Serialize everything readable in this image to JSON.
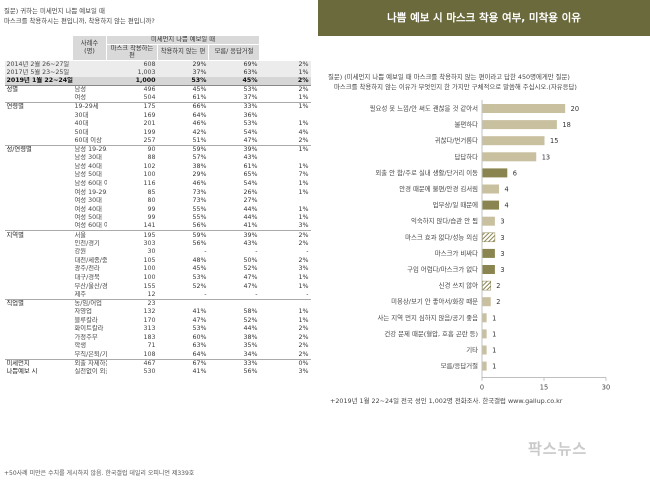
{
  "table": {
    "question1": "질문) 귀하는 미세먼지 나쁨 예보일 때",
    "question2": "마스크를 착용하시는 편입니까, 착용하지 않는 편입니까?",
    "header": {
      "base_label": "사례수 (명)",
      "super_label": "미세먼지 나쁨 예보일 때",
      "col_wear": "마스크 착용하는 편",
      "col_notwear": "착용하지 않는 편",
      "col_dk": "모름/ 응답거절"
    },
    "rows": [
      {
        "g": "",
        "s": "2014년 2월 26~27일",
        "n": "608",
        "a": "29%",
        "b": "69%",
        "c": "2%",
        "type": "trend"
      },
      {
        "g": "",
        "s": "2017년 5월 23~25일",
        "n": "1,003",
        "a": "37%",
        "b": "63%",
        "c": "1%",
        "type": "trend"
      },
      {
        "g": "",
        "s": "2019년 1월 22~24일",
        "n": "1,000",
        "a": "53%",
        "b": "45%",
        "c": "2%",
        "type": "current"
      },
      {
        "g": "성별",
        "s": "남성",
        "n": "496",
        "a": "45%",
        "b": "53%",
        "c": "2%"
      },
      {
        "g": "",
        "s": "여성",
        "n": "504",
        "a": "61%",
        "b": "37%",
        "c": "1%"
      },
      {
        "g": "연령별",
        "s": "19-29세",
        "n": "175",
        "a": "66%",
        "b": "33%",
        "c": "1%"
      },
      {
        "g": "",
        "s": "30대",
        "n": "169",
        "a": "64%",
        "b": "36%",
        "c": ""
      },
      {
        "g": "",
        "s": "40대",
        "n": "201",
        "a": "46%",
        "b": "53%",
        "c": "1%"
      },
      {
        "g": "",
        "s": "50대",
        "n": "199",
        "a": "42%",
        "b": "54%",
        "c": "4%"
      },
      {
        "g": "",
        "s": "60대 이상",
        "n": "257",
        "a": "51%",
        "b": "47%",
        "c": "2%"
      },
      {
        "g": "성/연령별",
        "s": "남성 19-29세",
        "n": "90",
        "a": "59%",
        "b": "39%",
        "c": "1%"
      },
      {
        "g": "",
        "s": "남성 30대",
        "n": "88",
        "a": "57%",
        "b": "43%",
        "c": ""
      },
      {
        "g": "",
        "s": "남성 40대",
        "n": "102",
        "a": "38%",
        "b": "61%",
        "c": "1%"
      },
      {
        "g": "",
        "s": "남성 50대",
        "n": "100",
        "a": "29%",
        "b": "65%",
        "c": "7%"
      },
      {
        "g": "",
        "s": "남성 60대 이상",
        "n": "116",
        "a": "46%",
        "b": "54%",
        "c": "1%"
      },
      {
        "g": "",
        "s": "여성 19-29세",
        "n": "85",
        "a": "73%",
        "b": "26%",
        "c": "1%"
      },
      {
        "g": "",
        "s": "여성 30대",
        "n": "80",
        "a": "73%",
        "b": "27%",
        "c": ""
      },
      {
        "g": "",
        "s": "여성 40대",
        "n": "99",
        "a": "55%",
        "b": "44%",
        "c": "1%"
      },
      {
        "g": "",
        "s": "여성 50대",
        "n": "99",
        "a": "55%",
        "b": "44%",
        "c": "1%"
      },
      {
        "g": "",
        "s": "여성 60대 이상",
        "n": "141",
        "a": "56%",
        "b": "41%",
        "c": "3%"
      },
      {
        "g": "지역별",
        "s": "서울",
        "n": "195",
        "a": "59%",
        "b": "39%",
        "c": "2%"
      },
      {
        "g": "",
        "s": "인천/경기",
        "n": "303",
        "s2": "",
        "a": "56%",
        "b": "43%",
        "c": "2%"
      },
      {
        "g": "",
        "s": "강원",
        "n": "30",
        "a": "-",
        "b": "-",
        "c": "-"
      },
      {
        "g": "",
        "s": "대전/세종/충청",
        "n": "105",
        "a": "48%",
        "b": "50%",
        "c": "2%"
      },
      {
        "g": "",
        "s": "광주/전라",
        "n": "100",
        "a": "45%",
        "b": "52%",
        "c": "3%"
      },
      {
        "g": "",
        "s": "대구/경북",
        "n": "100",
        "a": "53%",
        "b": "47%",
        "c": "1%"
      },
      {
        "g": "",
        "s": "부산/울산/경남",
        "n": "155",
        "a": "52%",
        "b": "47%",
        "c": "1%"
      },
      {
        "g": "",
        "s": "제주",
        "n": "12",
        "a": "-",
        "b": "-",
        "c": "-"
      },
      {
        "g": "직업별",
        "s": "농/임/어업",
        "n": "23",
        "a": "",
        "b": "",
        "c": ""
      },
      {
        "g": "",
        "s": "자영업",
        "n": "132",
        "a": "41%",
        "b": "58%",
        "c": "1%"
      },
      {
        "g": "",
        "s": "블루칼라",
        "n": "170",
        "a": "47%",
        "b": "52%",
        "c": "1%"
      },
      {
        "g": "",
        "s": "화이트칼라",
        "n": "313",
        "s3": "",
        "a": "53%",
        "b": "44%",
        "c": "2%"
      },
      {
        "g": "",
        "s": "가정주부",
        "n": "183",
        "a": "60%",
        "b": "38%",
        "c": "2%"
      },
      {
        "g": "",
        "s": "학생",
        "n": "71",
        "a": "63%",
        "b": "35%",
        "c": "2%"
      },
      {
        "g": "",
        "s": "무직/은퇴/기타",
        "n": "108",
        "a": "64%",
        "b": "34%",
        "c": "2%"
      },
      {
        "g": "미세먼지",
        "s": "외출 자제하는 편",
        "n": "467",
        "a": "67%",
        "b": "33%",
        "c": "0%"
      },
      {
        "g": "나쁨예보 시",
        "s": "실천없이 외출",
        "n": "530",
        "a": "41%",
        "b": "56%",
        "c": "3%"
      }
    ],
    "footnote": "+50사례 미만은 수치를 게시하지 않음. 한국갤럽 데일리 오피니언 제339호"
  },
  "chart_panel": {
    "banner": "나쁨 예보 시 마스크 착용 여부, 미착용 이유",
    "note1": "질문) (미세먼지 나쁨 예보일 때 마스크를 착용하지 않는 편이라고 답한 450명에게만 질문)",
    "note2": "마스크를 착용하지 않는 이유가 무엇인지 한 가지만 구체적으로 말씀해 주십시오.(자유응답)",
    "caption": "+2019년 1월 22~24일 전국 성인 1,002명 전화조사. 한국갤럽 www.gallup.co.kr",
    "watermark": "팍스뉴스"
  },
  "chart_data": {
    "type": "bar",
    "orientation": "horizontal",
    "categories": [
      "필요성 못 느낌/안 써도 괜찮을 것 같아서",
      "불편하다",
      "귀찮다/번거롭다",
      "답답하다",
      "외출 안 함/주로 실내 생활/단거리 이동",
      "안경 때문에 불편/안경 김서림",
      "업무상/일 때문에",
      "익숙하지 않다/습관 안 됨",
      "마스크 효과 없다/성능 의심",
      "마스크가 비싸다",
      "구입 어렵다/마스크가 없다",
      "신경 쓰지 않아",
      "미용상/보기 안 좋아서/화장 때문",
      "사는 지역 먼지 심하지 않음/공기 좋음",
      "건강 문제 때문(혈압, 호흡 곤란 등)",
      "기타",
      "모름/응답거절"
    ],
    "values": [
      20,
      18,
      15,
      13,
      6,
      4,
      4,
      3,
      3,
      3,
      3,
      2,
      2,
      1,
      1,
      1,
      1
    ],
    "value_labels": [
      "20",
      "18",
      "15",
      "13",
      "6",
      "4",
      "4",
      "3",
      "3",
      "3",
      "3",
      "2",
      "2",
      "1",
      "1",
      "1",
      "1"
    ],
    "bar_styles": [
      "solid",
      "solid",
      "solid",
      "solid",
      "dark",
      "solid",
      "dark",
      "solid",
      "hatch",
      "dark",
      "dark",
      "hatch",
      "solid",
      "solid",
      "solid",
      "solid",
      "solid"
    ],
    "colors": {
      "solid": "#c9c0a0",
      "dark": "#8a8550",
      "hatch": "#8a8550",
      "axis": "#999999"
    },
    "xlim": [
      0,
      30
    ],
    "xticks": [
      "0",
      "15",
      "30"
    ],
    "grid": false,
    "legend": "none"
  }
}
